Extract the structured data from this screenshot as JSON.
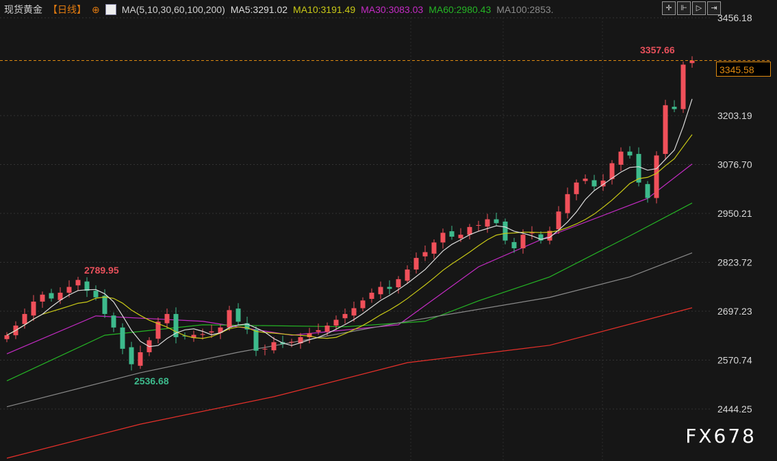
{
  "header": {
    "instrument": "现货黄金",
    "period": "【日线】",
    "ma_label": "MA(5,10,30,60,100,200)",
    "ma5": "MA5:3291.02",
    "ma10": "MA10:3191.49",
    "ma30": "MA30:3083.03",
    "ma60": "MA60:2980.43",
    "ma100": "MA100:2853."
  },
  "tools": [
    "crosshair",
    "zoom-range",
    "play",
    "move-right"
  ],
  "watermark": "FX678",
  "current_price": "3345.58",
  "chart_data": {
    "type": "candlestick",
    "ylim": [
      2380,
      3500
    ],
    "yticks": [
      "3456.18",
      "3203.19",
      "3076.70",
      "2950.21",
      "2823.72",
      "2697.23",
      "2570.74",
      "2444.25"
    ],
    "closes": [
      2635,
      2660,
      2690,
      2722,
      2740,
      2730,
      2745,
      2760,
      2778,
      2750,
      2733,
      2690,
      2655,
      2600,
      2560,
      2591,
      2622,
      2670,
      2690,
      2630,
      2632,
      2636,
      2638,
      2645,
      2655,
      2700,
      2670,
      2650,
      2595,
      2600,
      2617,
      2612,
      2618,
      2630,
      2640,
      2648,
      2660,
      2675,
      2690,
      2705,
      2725,
      2745,
      2760,
      2755,
      2780,
      2805,
      2835,
      2850,
      2875,
      2900,
      2890,
      2895,
      2915,
      2920,
      2935,
      2925,
      2880,
      2860,
      2895,
      2900,
      2880,
      2905,
      2955,
      3000,
      3030,
      3040,
      3020,
      3035,
      3080,
      3110,
      3100,
      3030,
      2990,
      3100,
      3230,
      3220,
      3335,
      3345.58
    ],
    "annotations": {
      "high": "3357.66",
      "high_left": "2789.95",
      "low": "2536.68"
    },
    "ma_lines": [
      {
        "name": "MA30",
        "color": "#c42bc4",
        "points": [
          [
            0,
            2587
          ],
          [
            10,
            2685
          ],
          [
            22,
            2671
          ],
          [
            32,
            2635
          ],
          [
            44,
            2662
          ],
          [
            53,
            2812
          ],
          [
            61,
            2892
          ],
          [
            72,
            2989
          ],
          [
            77,
            3078
          ]
        ]
      },
      {
        "name": "MA60",
        "color": "#25b525",
        "points": [
          [
            0,
            2517
          ],
          [
            11,
            2635
          ],
          [
            22,
            2662
          ],
          [
            38,
            2657
          ],
          [
            47,
            2671
          ],
          [
            53,
            2724
          ],
          [
            61,
            2786
          ],
          [
            70,
            2892
          ],
          [
            77,
            2977
          ]
        ]
      },
      {
        "name": "MA100",
        "color": "#8a8a8a",
        "points": [
          [
            0,
            2450
          ],
          [
            15,
            2538
          ],
          [
            26,
            2591
          ],
          [
            45,
            2671
          ],
          [
            61,
            2733
          ],
          [
            70,
            2786
          ],
          [
            77,
            2848
          ]
        ]
      },
      {
        "name": "MA200",
        "color": "#e8302a",
        "points": [
          [
            0,
            2317
          ],
          [
            15,
            2405
          ],
          [
            30,
            2476
          ],
          [
            45,
            2564
          ],
          [
            61,
            2609
          ],
          [
            77,
            2706
          ]
        ]
      }
    ],
    "colors": {
      "up": "#f0505a",
      "down": "#3dba8c",
      "ma5": "#dcdcdc",
      "ma10": "#c9c916"
    }
  }
}
